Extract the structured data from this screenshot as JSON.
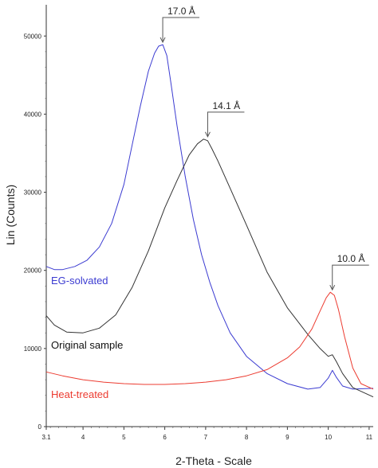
{
  "chart_data": {
    "type": "line",
    "xlabel": "2-Theta - Scale",
    "ylabel": "Lin (Counts)",
    "xlim": [
      3.1,
      11.1
    ],
    "ylim": [
      0,
      54000
    ],
    "x_ticks": [
      "3.1",
      "4",
      "5",
      "6",
      "7",
      "8",
      "9",
      "10",
      "11"
    ],
    "y_ticks": [
      "0",
      "10000",
      "20000",
      "30000",
      "40000",
      "50000"
    ],
    "grid": false,
    "colors": {
      "eg": "#3b3bd1",
      "original": "#333333",
      "heat": "#ec3b30"
    },
    "series": [
      {
        "name": "EG-solvated",
        "color": "#3b3bd1",
        "x": [
          3.1,
          3.3,
          3.5,
          3.8,
          4.1,
          4.4,
          4.7,
          5.0,
          5.2,
          5.4,
          5.6,
          5.75,
          5.85,
          5.95,
          6.05,
          6.15,
          6.3,
          6.5,
          6.7,
          6.9,
          7.1,
          7.3,
          7.6,
          8.0,
          8.5,
          9.0,
          9.5,
          9.8,
          10.0,
          10.1,
          10.2,
          10.35,
          10.6,
          11.1
        ],
        "y": [
          20500,
          20100,
          20100,
          20500,
          21300,
          23000,
          26000,
          31000,
          36000,
          41000,
          45500,
          47800,
          48700,
          48900,
          47500,
          44000,
          38500,
          32000,
          26500,
          22000,
          18500,
          15500,
          12000,
          9000,
          6800,
          5500,
          4800,
          5000,
          6200,
          7200,
          6300,
          5200,
          4800,
          4900
        ]
      },
      {
        "name": "Original sample",
        "color": "#333333",
        "x": [
          3.1,
          3.3,
          3.6,
          4.0,
          4.4,
          4.8,
          5.2,
          5.6,
          6.0,
          6.3,
          6.6,
          6.8,
          6.95,
          7.05,
          7.15,
          7.3,
          7.6,
          8.0,
          8.5,
          9.0,
          9.5,
          9.8,
          10.0,
          10.1,
          10.2,
          10.35,
          10.6,
          11.1
        ],
        "y": [
          14200,
          13000,
          12100,
          12000,
          12600,
          14300,
          17800,
          22500,
          28000,
          31500,
          34800,
          36200,
          36800,
          36600,
          35600,
          34000,
          30500,
          25800,
          19800,
          15200,
          11800,
          10000,
          9000,
          9200,
          8300,
          6800,
          5000,
          3800
        ]
      },
      {
        "name": "Heat-treated",
        "color": "#ec3b30",
        "x": [
          3.1,
          3.5,
          4.0,
          4.5,
          5.0,
          5.5,
          6.0,
          6.5,
          7.0,
          7.5,
          8.0,
          8.5,
          9.0,
          9.3,
          9.6,
          9.8,
          9.95,
          10.05,
          10.15,
          10.25,
          10.4,
          10.6,
          10.8,
          11.1
        ],
        "y": [
          7000,
          6500,
          6000,
          5700,
          5500,
          5400,
          5400,
          5500,
          5700,
          6000,
          6500,
          7300,
          8800,
          10200,
          12500,
          14800,
          16500,
          17200,
          16800,
          15000,
          11500,
          7500,
          5500,
          4800
        ]
      }
    ],
    "annotations": [
      {
        "text": "17.0 Å",
        "x": 5.95
      },
      {
        "text": "14.1 Å",
        "x": 7.05
      },
      {
        "text": "10.0 Å",
        "x": 10.1
      }
    ],
    "series_labels": [
      {
        "text": "EG-solvated",
        "series": 0
      },
      {
        "text": "Original sample",
        "series": 1
      },
      {
        "text": "Heat-treated",
        "series": 2
      }
    ]
  }
}
